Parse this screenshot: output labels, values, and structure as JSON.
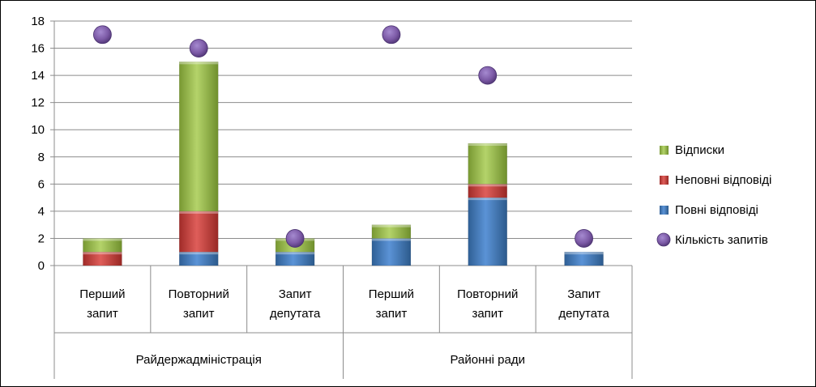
{
  "chart_data": {
    "type": "bar",
    "stacked": true,
    "ylim": [
      0,
      18
    ],
    "ytick_step": 2,
    "grid": true,
    "legend_position": "right",
    "groups": [
      {
        "name": "Райдержадміністрація",
        "categories": [
          "Перший|запит",
          "Повторний|запит",
          "Запит|депутата"
        ]
      },
      {
        "name": "Районні ради",
        "categories": [
          "Перший|запит",
          "Повторний|запит",
          "Запит|депутата"
        ]
      }
    ],
    "series": [
      {
        "name": "Повні відповіді",
        "kind": "bar",
        "color": "#4f81bd",
        "values": [
          0,
          1,
          1,
          2,
          5,
          1
        ]
      },
      {
        "name": "Неповні відповіді",
        "kind": "bar",
        "color": "#c0504d",
        "values": [
          1,
          3,
          0,
          0,
          1,
          0
        ]
      },
      {
        "name": "Відписки",
        "kind": "bar",
        "color": "#9bbb59",
        "values": [
          1,
          11,
          1,
          1,
          3,
          0
        ]
      },
      {
        "name": "Кількість запитів",
        "kind": "marker",
        "color": "#8064a2",
        "values": [
          17,
          16,
          2,
          17,
          14,
          2
        ]
      }
    ],
    "legend_order": [
      "Відписки",
      "Неповні відповіді",
      "Повні відповіді",
      "Кількість запитів"
    ]
  }
}
